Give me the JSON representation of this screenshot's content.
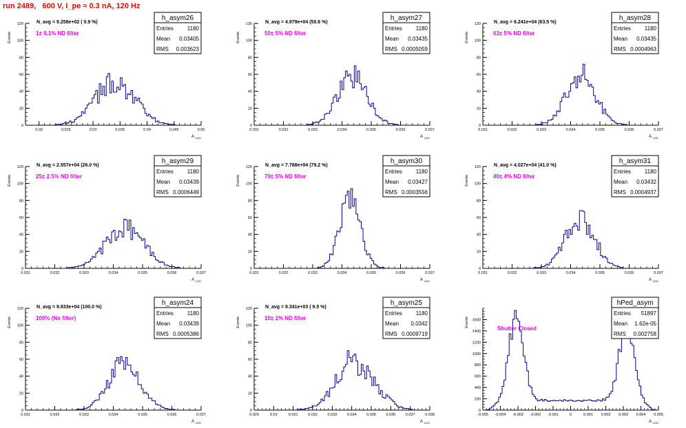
{
  "title": "run 2489,   600 V, I_pe ≈ 0.3 nA, 120 Hz",
  "colors": {
    "title": "#ee0000",
    "histogram": "#00008b",
    "annotation": "#ee00ee",
    "axis": "#000000"
  },
  "stats_labels": {
    "entries": "Entries",
    "mean": "Mean",
    "rms": "RMS"
  },
  "ylabel": "Events",
  "xlabel": "A",
  "xlabel_sub": "LED",
  "chart_data": [
    {
      "type": "histogram",
      "name": "h_asym26",
      "navg": "N_avg = 9.258e+02 ( 0.9 %)",
      "filter": "1± 0.1% ND filter",
      "stats": {
        "entries": "1180",
        "mean": "0.03405",
        "rms": "0.003623"
      },
      "xlim": [
        0.0175,
        0.05
      ],
      "ylim": [
        0,
        120
      ],
      "xticks": [
        0.02,
        0.025,
        0.03,
        0.035,
        0.04,
        0.045,
        0.05
      ],
      "xtick_labels": [
        "0.02",
        "0.025",
        "0.03",
        "0.035",
        "0.04",
        "0.045",
        "0.05"
      ],
      "yticks": [
        0,
        20,
        40,
        60,
        80,
        100,
        120
      ],
      "hist": {
        "mean": 0.03405,
        "sigma": 0.003623,
        "peak": 51,
        "noise": 0.3
      }
    },
    {
      "type": "histogram",
      "name": "h_asym27",
      "navg": "N_avg = 4.979e+04 (50.6 %)",
      "filter": "50± 5% ND filter",
      "stats": {
        "entries": "1180",
        "mean": "0.03435",
        "rms": "0.0005059"
      },
      "xlim": [
        0.031,
        0.037
      ],
      "ylim": [
        0,
        120
      ],
      "xticks": [
        0.031,
        0.032,
        0.033,
        0.034,
        0.035,
        0.036,
        0.037
      ],
      "xtick_labels": [
        "0.031",
        "0.032",
        "0.033",
        "0.034",
        "0.035",
        "0.036",
        "0.037"
      ],
      "yticks": [
        0,
        20,
        40,
        60,
        80,
        100,
        120
      ],
      "hist": {
        "mean": 0.03435,
        "sigma": 0.0005059,
        "peak": 57,
        "noise": 0.25
      }
    },
    {
      "type": "histogram",
      "name": "h_asym28",
      "navg": "N_avg = 6.241e+04 (63.5 %)",
      "filter": "63± 5% ND filter",
      "stats": {
        "entries": "1180",
        "mean": "0.03435",
        "rms": "0.0004963"
      },
      "xlim": [
        0.031,
        0.037
      ],
      "ylim": [
        0,
        120
      ],
      "xticks": [
        0.031,
        0.032,
        0.033,
        0.034,
        0.035,
        0.036,
        0.037
      ],
      "xtick_labels": [
        "0.031",
        "0.032",
        "0.033",
        "0.034",
        "0.035",
        "0.036",
        "0.037"
      ],
      "yticks": [
        0,
        20,
        40,
        60,
        80,
        100,
        120
      ],
      "hist": {
        "mean": 0.03435,
        "sigma": 0.0004963,
        "peak": 60,
        "noise": 0.25
      }
    },
    {
      "type": "histogram",
      "name": "h_asym29",
      "navg": "N_avg = 2.557e+04 (26.0 %)",
      "filter": "25± 2.5% ND filter",
      "stats": {
        "entries": "1180",
        "mean": "0.03439",
        "rms": "0.0006449"
      },
      "xlim": [
        0.031,
        0.037
      ],
      "ylim": [
        0,
        120
      ],
      "xticks": [
        0.031,
        0.032,
        0.033,
        0.034,
        0.035,
        0.036,
        0.037
      ],
      "xtick_labels": [
        "0.031",
        "0.032",
        "0.033",
        "0.034",
        "0.035",
        "0.036",
        "0.037"
      ],
      "yticks": [
        0,
        20,
        40,
        60,
        80,
        100,
        120
      ],
      "hist": {
        "mean": 0.03439,
        "sigma": 0.0006449,
        "peak": 48,
        "noise": 0.25
      }
    },
    {
      "type": "histogram",
      "name": "h_asym30",
      "navg": "N_avg = 7.788e+04 (79.2 %)",
      "filter": "79± 5% ND filter",
      "stats": {
        "entries": "1180",
        "mean": "0.03427",
        "rms": "0.0003556"
      },
      "xlim": [
        0.031,
        0.037
      ],
      "ylim": [
        0,
        120
      ],
      "xticks": [
        0.031,
        0.032,
        0.033,
        0.034,
        0.035,
        0.036,
        0.037
      ],
      "xtick_labels": [
        "0.031",
        "0.032",
        "0.033",
        "0.034",
        "0.035",
        "0.036",
        "0.037"
      ],
      "yticks": [
        0,
        20,
        40,
        60,
        80,
        100,
        120
      ],
      "hist": {
        "mean": 0.03427,
        "sigma": 0.0003556,
        "peak": 82,
        "noise": 0.2
      }
    },
    {
      "type": "histogram",
      "name": "h_asym31",
      "navg": "N_avg = 4.027e+04 (41.0 %)",
      "filter": "40± 4% ND filter",
      "stats": {
        "entries": "1180",
        "mean": "0.03432",
        "rms": "0.0004937"
      },
      "xlim": [
        0.031,
        0.037
      ],
      "ylim": [
        0,
        120
      ],
      "xticks": [
        0.031,
        0.032,
        0.033,
        0.034,
        0.035,
        0.036,
        0.037
      ],
      "xtick_labels": [
        "0.031",
        "0.032",
        "0.033",
        "0.034",
        "0.035",
        "0.036",
        "0.037"
      ],
      "yticks": [
        0,
        20,
        40,
        60,
        80,
        100,
        120
      ],
      "hist": {
        "mean": 0.03432,
        "sigma": 0.0004937,
        "peak": 60,
        "noise": 0.25
      }
    },
    {
      "type": "histogram",
      "name": "h_asym24",
      "navg": "N_avg = 9.833e+04 (100.0 %)",
      "filter": "100% (No filter)",
      "stats": {
        "entries": "1180",
        "mean": "0.03439",
        "rms": "0.0005386"
      },
      "xlim": [
        0.031,
        0.037
      ],
      "ylim": [
        0,
        120
      ],
      "xticks": [
        0.031,
        0.032,
        0.033,
        0.034,
        0.035,
        0.036,
        0.037
      ],
      "xtick_labels": [
        "0.031",
        "0.032",
        "0.033",
        "0.034",
        "0.035",
        "0.036",
        "0.037"
      ],
      "yticks": [
        0,
        20,
        40,
        60,
        80,
        100,
        120
      ],
      "hist": {
        "mean": 0.03439,
        "sigma": 0.0005386,
        "peak": 55,
        "noise": 0.25
      }
    },
    {
      "type": "histogram",
      "name": "h_asym25",
      "navg": "N_avg = 9.341e+03 ( 9.5 %)",
      "filter": "10± 1% ND filter",
      "stats": {
        "entries": "1180",
        "mean": "0.0342",
        "rms": "0.0009719"
      },
      "xlim": [
        0.029,
        0.038
      ],
      "ylim": [
        0,
        120
      ],
      "xticks": [
        0.029,
        0.03,
        0.031,
        0.032,
        0.033,
        0.034,
        0.035,
        0.036,
        0.037,
        0.038
      ],
      "xtick_labels": [
        "0.029",
        "0.03",
        "0.031",
        "0.032",
        "0.033",
        "0.034",
        "0.035",
        "0.036",
        "0.037",
        "0.038"
      ],
      "yticks": [
        0,
        20,
        40,
        60,
        80,
        100,
        120
      ],
      "hist": {
        "mean": 0.0342,
        "sigma": 0.0009719,
        "peak": 58,
        "noise": 0.3
      }
    },
    {
      "type": "histogram",
      "name": "hPed_asym",
      "navg": "",
      "filter": "Shutter Closed",
      "stats": {
        "entries": "51897",
        "mean": "1.62e-05",
        "rms": "0.002758"
      },
      "xlim": [
        -0.005,
        0.005
      ],
      "ylim": [
        0,
        1800
      ],
      "xticks": [
        -0.005,
        -0.004,
        -0.003,
        -0.002,
        -0.001,
        0,
        0.001,
        0.002,
        0.003,
        0.004,
        0.005
      ],
      "xtick_labels": [
        "-0.005",
        "-0.004",
        "-0.003",
        "-0.002",
        "-0.001",
        "0",
        "0.001",
        "0.002",
        "0.003",
        "0.004",
        "0.005"
      ],
      "yticks": [
        0,
        200,
        400,
        600,
        800,
        1000,
        1200,
        1400,
        1600
      ],
      "hist": {
        "peaks": [
          {
            "mean": -0.0031,
            "sigma": 0.00042,
            "amp": 1500
          },
          {
            "mean": 0.0032,
            "sigma": 0.00042,
            "amp": 1420
          }
        ],
        "baseline": 170,
        "noise": 0.12
      }
    }
  ]
}
